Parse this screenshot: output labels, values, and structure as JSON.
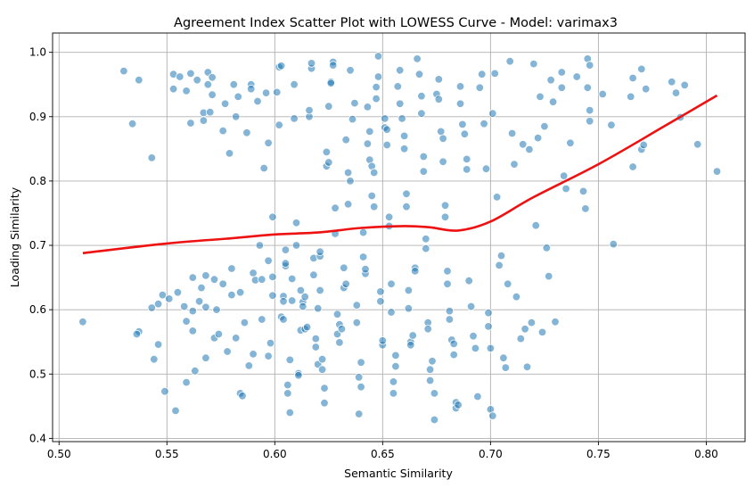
{
  "chart_data": {
    "type": "scatter",
    "title": "Agreement Index Scatter Plot with LOWESS Curve - Model: varimax3",
    "xlabel": "Semantic Similarity",
    "ylabel": "Loading Similarity",
    "xlim": [
      0.497,
      0.818
    ],
    "ylim": [
      0.395,
      1.03
    ],
    "xticks": [
      0.5,
      0.55,
      0.6,
      0.65,
      0.7,
      0.75,
      0.8
    ],
    "xtick_labels": [
      "0.50",
      "0.55",
      "0.60",
      "0.65",
      "0.70",
      "0.75",
      "0.80"
    ],
    "yticks": [
      0.4,
      0.5,
      0.6,
      0.7,
      0.8,
      0.9,
      1.0
    ],
    "ytick_labels": [
      "0.4",
      "0.5",
      "0.6",
      "0.7",
      "0.8",
      "0.9",
      "1.0"
    ],
    "grid": true,
    "legend": "none",
    "point_color": "#1f77b4",
    "curve_color": "#ee1111",
    "lowess_curve": {
      "x": [
        0.511,
        0.55,
        0.58,
        0.6,
        0.62,
        0.64,
        0.66,
        0.672,
        0.685,
        0.7,
        0.72,
        0.75,
        0.78,
        0.805
      ],
      "y": [
        0.688,
        0.703,
        0.711,
        0.717,
        0.72,
        0.727,
        0.73,
        0.728,
        0.723,
        0.737,
        0.775,
        0.826,
        0.884,
        0.933
      ]
    },
    "points": [
      [
        0.511,
        0.581
      ],
      [
        0.53,
        0.971
      ],
      [
        0.534,
        0.889
      ],
      [
        0.537,
        0.957
      ],
      [
        0.537,
        0.566
      ],
      [
        0.536,
        0.562
      ],
      [
        0.543,
        0.836
      ],
      [
        0.543,
        0.603
      ],
      [
        0.544,
        0.523
      ],
      [
        0.546,
        0.609
      ],
      [
        0.546,
        0.546
      ],
      [
        0.548,
        0.623
      ],
      [
        0.549,
        0.473
      ],
      [
        0.551,
        0.617
      ],
      [
        0.553,
        0.966
      ],
      [
        0.553,
        0.943
      ],
      [
        0.554,
        0.443
      ],
      [
        0.555,
        0.627
      ],
      [
        0.556,
        0.962
      ],
      [
        0.558,
        0.605
      ],
      [
        0.559,
        0.582
      ],
      [
        0.559,
        0.487
      ],
      [
        0.559,
        0.94
      ],
      [
        0.561,
        0.89
      ],
      [
        0.561,
        0.967
      ],
      [
        0.562,
        0.65
      ],
      [
        0.562,
        0.598
      ],
      [
        0.562,
        0.567
      ],
      [
        0.563,
        0.505
      ],
      [
        0.564,
        0.957
      ],
      [
        0.565,
        0.613
      ],
      [
        0.566,
        0.634
      ],
      [
        0.567,
        0.894
      ],
      [
        0.567,
        0.906
      ],
      [
        0.568,
        0.653
      ],
      [
        0.568,
        0.604
      ],
      [
        0.568,
        0.525
      ],
      [
        0.569,
        0.969
      ],
      [
        0.569,
        0.95
      ],
      [
        0.57,
        0.907
      ],
      [
        0.571,
        0.961
      ],
      [
        0.571,
        0.934
      ],
      [
        0.572,
        0.556
      ],
      [
        0.572,
        0.647
      ],
      [
        0.573,
        0.6
      ],
      [
        0.574,
        0.562
      ],
      [
        0.576,
        0.64
      ],
      [
        0.576,
        0.878
      ],
      [
        0.577,
        0.92
      ],
      [
        0.578,
        0.535
      ],
      [
        0.579,
        0.843
      ],
      [
        0.58,
        0.664
      ],
      [
        0.58,
        0.623
      ],
      [
        0.581,
        0.95
      ],
      [
        0.582,
        0.9
      ],
      [
        0.582,
        0.556
      ],
      [
        0.583,
        0.931
      ],
      [
        0.584,
        0.47
      ],
      [
        0.584,
        0.627
      ],
      [
        0.585,
        0.466
      ],
      [
        0.586,
        0.58
      ],
      [
        0.587,
        0.875
      ],
      [
        0.588,
        0.513
      ],
      [
        0.589,
        0.95
      ],
      [
        0.589,
        0.943
      ],
      [
        0.59,
        0.657
      ],
      [
        0.59,
        0.531
      ],
      [
        0.591,
        0.646
      ],
      [
        0.592,
        0.924
      ],
      [
        0.593,
        0.7
      ],
      [
        0.594,
        0.647
      ],
      [
        0.594,
        0.585
      ],
      [
        0.595,
        0.82
      ],
      [
        0.596,
        0.937
      ],
      [
        0.597,
        0.859
      ],
      [
        0.597,
        0.676
      ],
      [
        0.597,
        0.528
      ],
      [
        0.598,
        0.548
      ],
      [
        0.599,
        0.651
      ],
      [
        0.599,
        0.744
      ],
      [
        0.599,
        0.622
      ],
      [
        0.601,
        0.938
      ],
      [
        0.602,
        0.887
      ],
      [
        0.602,
        0.977
      ],
      [
        0.603,
        0.979
      ],
      [
        0.603,
        0.589
      ],
      [
        0.604,
        0.621
      ],
      [
        0.604,
        0.585
      ],
      [
        0.604,
        0.613
      ],
      [
        0.605,
        0.693
      ],
      [
        0.605,
        0.668
      ],
      [
        0.605,
        0.672
      ],
      [
        0.606,
        0.483
      ],
      [
        0.606,
        0.47
      ],
      [
        0.607,
        0.44
      ],
      [
        0.607,
        0.522
      ],
      [
        0.608,
        0.614
      ],
      [
        0.608,
        0.648
      ],
      [
        0.609,
        0.897
      ],
      [
        0.609,
        0.95
      ],
      [
        0.61,
        0.7
      ],
      [
        0.61,
        0.735
      ],
      [
        0.611,
        0.501
      ],
      [
        0.611,
        0.498
      ],
      [
        0.612,
        0.568
      ],
      [
        0.612,
        0.63
      ],
      [
        0.613,
        0.612
      ],
      [
        0.613,
        0.605
      ],
      [
        0.614,
        0.62
      ],
      [
        0.614,
        0.57
      ],
      [
        0.615,
        0.573
      ],
      [
        0.616,
        0.9
      ],
      [
        0.616,
        0.91
      ],
      [
        0.617,
        0.975
      ],
      [
        0.617,
        0.983
      ],
      [
        0.618,
        0.654
      ],
      [
        0.618,
        0.68
      ],
      [
        0.619,
        0.555
      ],
      [
        0.619,
        0.542
      ],
      [
        0.62,
        0.515
      ],
      [
        0.62,
        0.602
      ],
      [
        0.621,
        0.63
      ],
      [
        0.621,
        0.683
      ],
      [
        0.621,
        0.69
      ],
      [
        0.622,
        0.507
      ],
      [
        0.622,
        0.523
      ],
      [
        0.623,
        0.455
      ],
      [
        0.623,
        0.478
      ],
      [
        0.624,
        0.845
      ],
      [
        0.624,
        0.823
      ],
      [
        0.625,
        0.829
      ],
      [
        0.625,
        0.916
      ],
      [
        0.626,
        0.954
      ],
      [
        0.626,
        0.952
      ],
      [
        0.627,
        0.985
      ],
      [
        0.627,
        0.98
      ],
      [
        0.628,
        0.718
      ],
      [
        0.628,
        0.758
      ],
      [
        0.629,
        0.593
      ],
      [
        0.629,
        0.562
      ],
      [
        0.63,
        0.577
      ],
      [
        0.63,
        0.549
      ],
      [
        0.631,
        0.57
      ],
      [
        0.632,
        0.634
      ],
      [
        0.632,
        0.665
      ],
      [
        0.633,
        0.64
      ],
      [
        0.633,
        0.864
      ],
      [
        0.634,
        0.813
      ],
      [
        0.634,
        0.764
      ],
      [
        0.635,
        0.8
      ],
      [
        0.635,
        0.972
      ],
      [
        0.636,
        0.896
      ],
      [
        0.637,
        0.921
      ],
      [
        0.638,
        0.58
      ],
      [
        0.638,
        0.607
      ],
      [
        0.639,
        0.495
      ],
      [
        0.639,
        0.438
      ],
      [
        0.64,
        0.48
      ],
      [
        0.64,
        0.518
      ],
      [
        0.641,
        0.72
      ],
      [
        0.641,
        0.682
      ],
      [
        0.642,
        0.656
      ],
      [
        0.642,
        0.663
      ],
      [
        0.643,
        0.858
      ],
      [
        0.643,
        0.915
      ],
      [
        0.644,
        0.877
      ],
      [
        0.644,
        0.833
      ],
      [
        0.645,
        0.823
      ],
      [
        0.645,
        0.777
      ],
      [
        0.646,
        0.76
      ],
      [
        0.646,
        0.813
      ],
      [
        0.647,
        0.928
      ],
      [
        0.647,
        0.946
      ],
      [
        0.648,
        0.994
      ],
      [
        0.648,
        0.962
      ],
      [
        0.649,
        0.613
      ],
      [
        0.649,
        0.628
      ],
      [
        0.65,
        0.545
      ],
      [
        0.65,
        0.552
      ],
      [
        0.651,
        0.897
      ],
      [
        0.651,
        0.883
      ],
      [
        0.652,
        0.88
      ],
      [
        0.652,
        0.856
      ],
      [
        0.653,
        0.744
      ],
      [
        0.653,
        0.73
      ],
      [
        0.654,
        0.64
      ],
      [
        0.654,
        0.596
      ],
      [
        0.655,
        0.488
      ],
      [
        0.655,
        0.47
      ],
      [
        0.656,
        0.512
      ],
      [
        0.656,
        0.529
      ],
      [
        0.657,
        0.947
      ],
      [
        0.658,
        0.972
      ],
      [
        0.658,
        0.92
      ],
      [
        0.659,
        0.897
      ],
      [
        0.66,
        0.85
      ],
      [
        0.66,
        0.87
      ],
      [
        0.661,
        0.78
      ],
      [
        0.661,
        0.76
      ],
      [
        0.662,
        0.602
      ],
      [
        0.662,
        0.63
      ],
      [
        0.663,
        0.55
      ],
      [
        0.663,
        0.545
      ],
      [
        0.664,
        0.56
      ],
      [
        0.665,
        0.665
      ],
      [
        0.665,
        0.66
      ],
      [
        0.666,
        0.99
      ],
      [
        0.667,
        0.966
      ],
      [
        0.668,
        0.932
      ],
      [
        0.668,
        0.905
      ],
      [
        0.669,
        0.838
      ],
      [
        0.669,
        0.815
      ],
      [
        0.67,
        0.71
      ],
      [
        0.67,
        0.695
      ],
      [
        0.671,
        0.58
      ],
      [
        0.671,
        0.57
      ],
      [
        0.672,
        0.507
      ],
      [
        0.672,
        0.49
      ],
      [
        0.673,
        0.52
      ],
      [
        0.674,
        0.429
      ],
      [
        0.674,
        0.47
      ],
      [
        0.675,
        0.935
      ],
      [
        0.676,
        0.927
      ],
      [
        0.676,
        0.958
      ],
      [
        0.677,
        0.877
      ],
      [
        0.678,
        0.83
      ],
      [
        0.678,
        0.866
      ],
      [
        0.679,
        0.762
      ],
      [
        0.679,
        0.744
      ],
      [
        0.68,
        0.66
      ],
      [
        0.68,
        0.64
      ],
      [
        0.681,
        0.598
      ],
      [
        0.681,
        0.585
      ],
      [
        0.682,
        0.553
      ],
      [
        0.683,
        0.53
      ],
      [
        0.683,
        0.547
      ],
      [
        0.684,
        0.456
      ],
      [
        0.684,
        0.447
      ],
      [
        0.685,
        0.452
      ],
      [
        0.686,
        0.947
      ],
      [
        0.686,
        0.92
      ],
      [
        0.687,
        0.888
      ],
      [
        0.688,
        0.873
      ],
      [
        0.689,
        0.818
      ],
      [
        0.689,
        0.834
      ],
      [
        0.69,
        0.645
      ],
      [
        0.691,
        0.605
      ],
      [
        0.692,
        0.559
      ],
      [
        0.693,
        0.54
      ],
      [
        0.694,
        0.465
      ],
      [
        0.695,
        0.945
      ],
      [
        0.696,
        0.966
      ],
      [
        0.697,
        0.889
      ],
      [
        0.698,
        0.819
      ],
      [
        0.699,
        0.574
      ],
      [
        0.699,
        0.595
      ],
      [
        0.7,
        0.54
      ],
      [
        0.7,
        0.445
      ],
      [
        0.701,
        0.435
      ],
      [
        0.701,
        0.905
      ],
      [
        0.702,
        0.967
      ],
      [
        0.703,
        0.775
      ],
      [
        0.704,
        0.669
      ],
      [
        0.705,
        0.684
      ],
      [
        0.706,
        0.525
      ],
      [
        0.707,
        0.51
      ],
      [
        0.708,
        0.64
      ],
      [
        0.709,
        0.986
      ],
      [
        0.71,
        0.874
      ],
      [
        0.711,
        0.826
      ],
      [
        0.712,
        0.62
      ],
      [
        0.714,
        0.555
      ],
      [
        0.715,
        0.857
      ],
      [
        0.716,
        0.57
      ],
      [
        0.717,
        0.511
      ],
      [
        0.718,
        0.849
      ],
      [
        0.719,
        0.58
      ],
      [
        0.72,
        0.982
      ],
      [
        0.721,
        0.731
      ],
      [
        0.722,
        0.867
      ],
      [
        0.723,
        0.931
      ],
      [
        0.724,
        0.565
      ],
      [
        0.725,
        0.885
      ],
      [
        0.726,
        0.696
      ],
      [
        0.727,
        0.652
      ],
      [
        0.728,
        0.957
      ],
      [
        0.729,
        0.923
      ],
      [
        0.73,
        0.581
      ],
      [
        0.733,
        0.969
      ],
      [
        0.733,
        0.945
      ],
      [
        0.734,
        0.808
      ],
      [
        0.735,
        0.788
      ],
      [
        0.737,
        0.859
      ],
      [
        0.74,
        0.962
      ],
      [
        0.743,
        0.784
      ],
      [
        0.744,
        0.757
      ],
      [
        0.745,
        0.99
      ],
      [
        0.745,
        0.945
      ],
      [
        0.746,
        0.98
      ],
      [
        0.746,
        0.91
      ],
      [
        0.746,
        0.893
      ],
      [
        0.752,
        0.935
      ],
      [
        0.756,
        0.887
      ],
      [
        0.757,
        0.702
      ],
      [
        0.765,
        0.931
      ],
      [
        0.766,
        0.96
      ],
      [
        0.766,
        0.822
      ],
      [
        0.77,
        0.974
      ],
      [
        0.77,
        0.849
      ],
      [
        0.771,
        0.856
      ],
      [
        0.772,
        0.943
      ],
      [
        0.784,
        0.954
      ],
      [
        0.786,
        0.937
      ],
      [
        0.788,
        0.899
      ],
      [
        0.79,
        0.949
      ],
      [
        0.796,
        0.857
      ],
      [
        0.805,
        0.815
      ]
    ]
  }
}
